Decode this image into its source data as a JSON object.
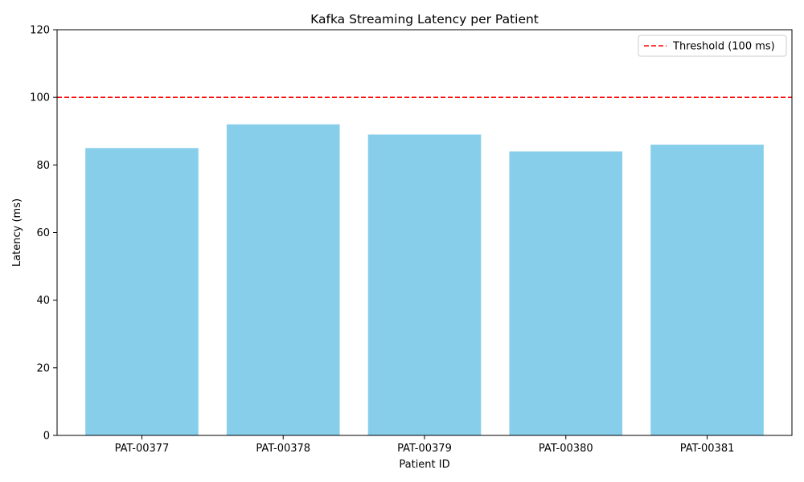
{
  "chart_data": {
    "type": "bar",
    "title": "Kafka Streaming Latency per Patient",
    "xlabel": "Patient ID",
    "ylabel": "Latency (ms)",
    "categories": [
      "PAT-00377",
      "PAT-00378",
      "PAT-00379",
      "PAT-00380",
      "PAT-00381"
    ],
    "values": [
      85,
      92,
      89,
      84,
      86
    ],
    "ylim": [
      0,
      120
    ],
    "yticks": [
      0,
      20,
      40,
      60,
      80,
      100,
      120
    ],
    "bar_color": "#87ceeb",
    "threshold": {
      "value": 100,
      "label": "Threshold (100 ms)",
      "color": "#ff0000",
      "style": "dashed"
    },
    "legend_position": "top-right",
    "grid": false
  }
}
